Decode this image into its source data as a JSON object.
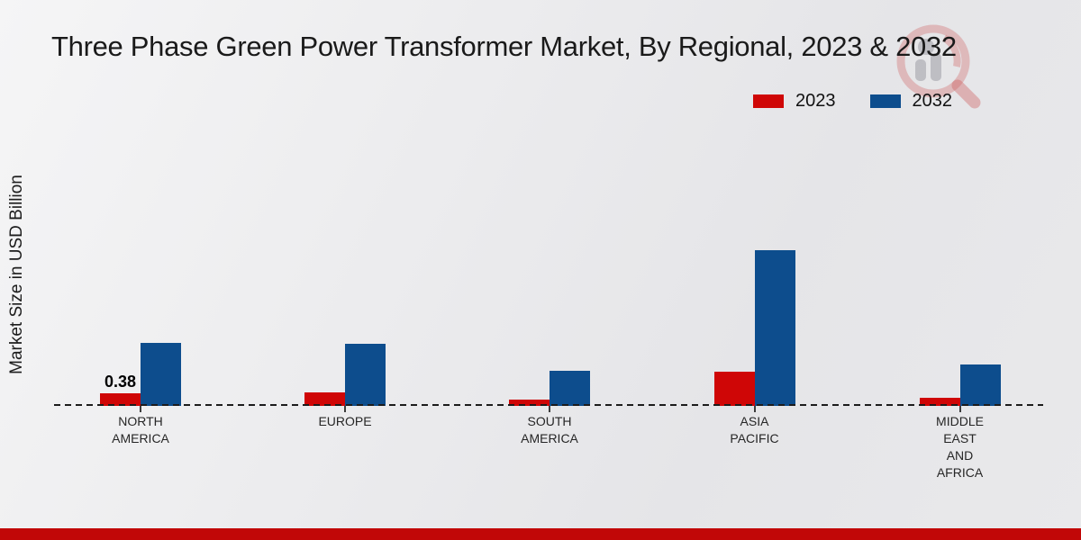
{
  "header": {
    "title": "Three Phase Green Power Transformer Market, By Regional, 2023 & 2032"
  },
  "chart_data": {
    "type": "bar",
    "title": "Three Phase Green Power Transformer Market, By Regional, 2023 & 2032",
    "xlabel": "",
    "ylabel": "Market Size in USD Billion",
    "ylim": [
      0,
      5
    ],
    "grid": false,
    "legend_position": "top-right",
    "baseline_style": "dashed",
    "categories": [
      "North America",
      "Europe",
      "South America",
      "Asia Pacific",
      "Middle East and Africa"
    ],
    "category_display_lines": [
      [
        "NORTH",
        "AMERICA"
      ],
      [
        "EUROPE"
      ],
      [
        "SOUTH",
        "AMERICA"
      ],
      [
        "ASIA",
        "PACIFIC"
      ],
      [
        "MIDDLE",
        "EAST",
        "AND",
        "AFRICA"
      ]
    ],
    "series": [
      {
        "name": "2023",
        "color": "#cf0606",
        "values": [
          0.38,
          0.4,
          0.18,
          1.02,
          0.25
        ]
      },
      {
        "name": "2032",
        "color": "#0d4d8d",
        "values": [
          1.9,
          1.87,
          1.05,
          4.69,
          1.25
        ]
      }
    ],
    "data_labels": [
      {
        "series": "2023",
        "category": "North America",
        "text": "0.38"
      }
    ]
  },
  "legend": {
    "items": [
      {
        "label": "2023",
        "color": "#cf0606"
      },
      {
        "label": "2032",
        "color": "#0d4d8d"
      }
    ]
  },
  "watermark": {
    "name": "magnifier-bar-chart-logo",
    "ring_color": "#cf6a6a",
    "figure_color": "#9d9da4"
  },
  "footer": {
    "bar_color": "#c10707"
  }
}
